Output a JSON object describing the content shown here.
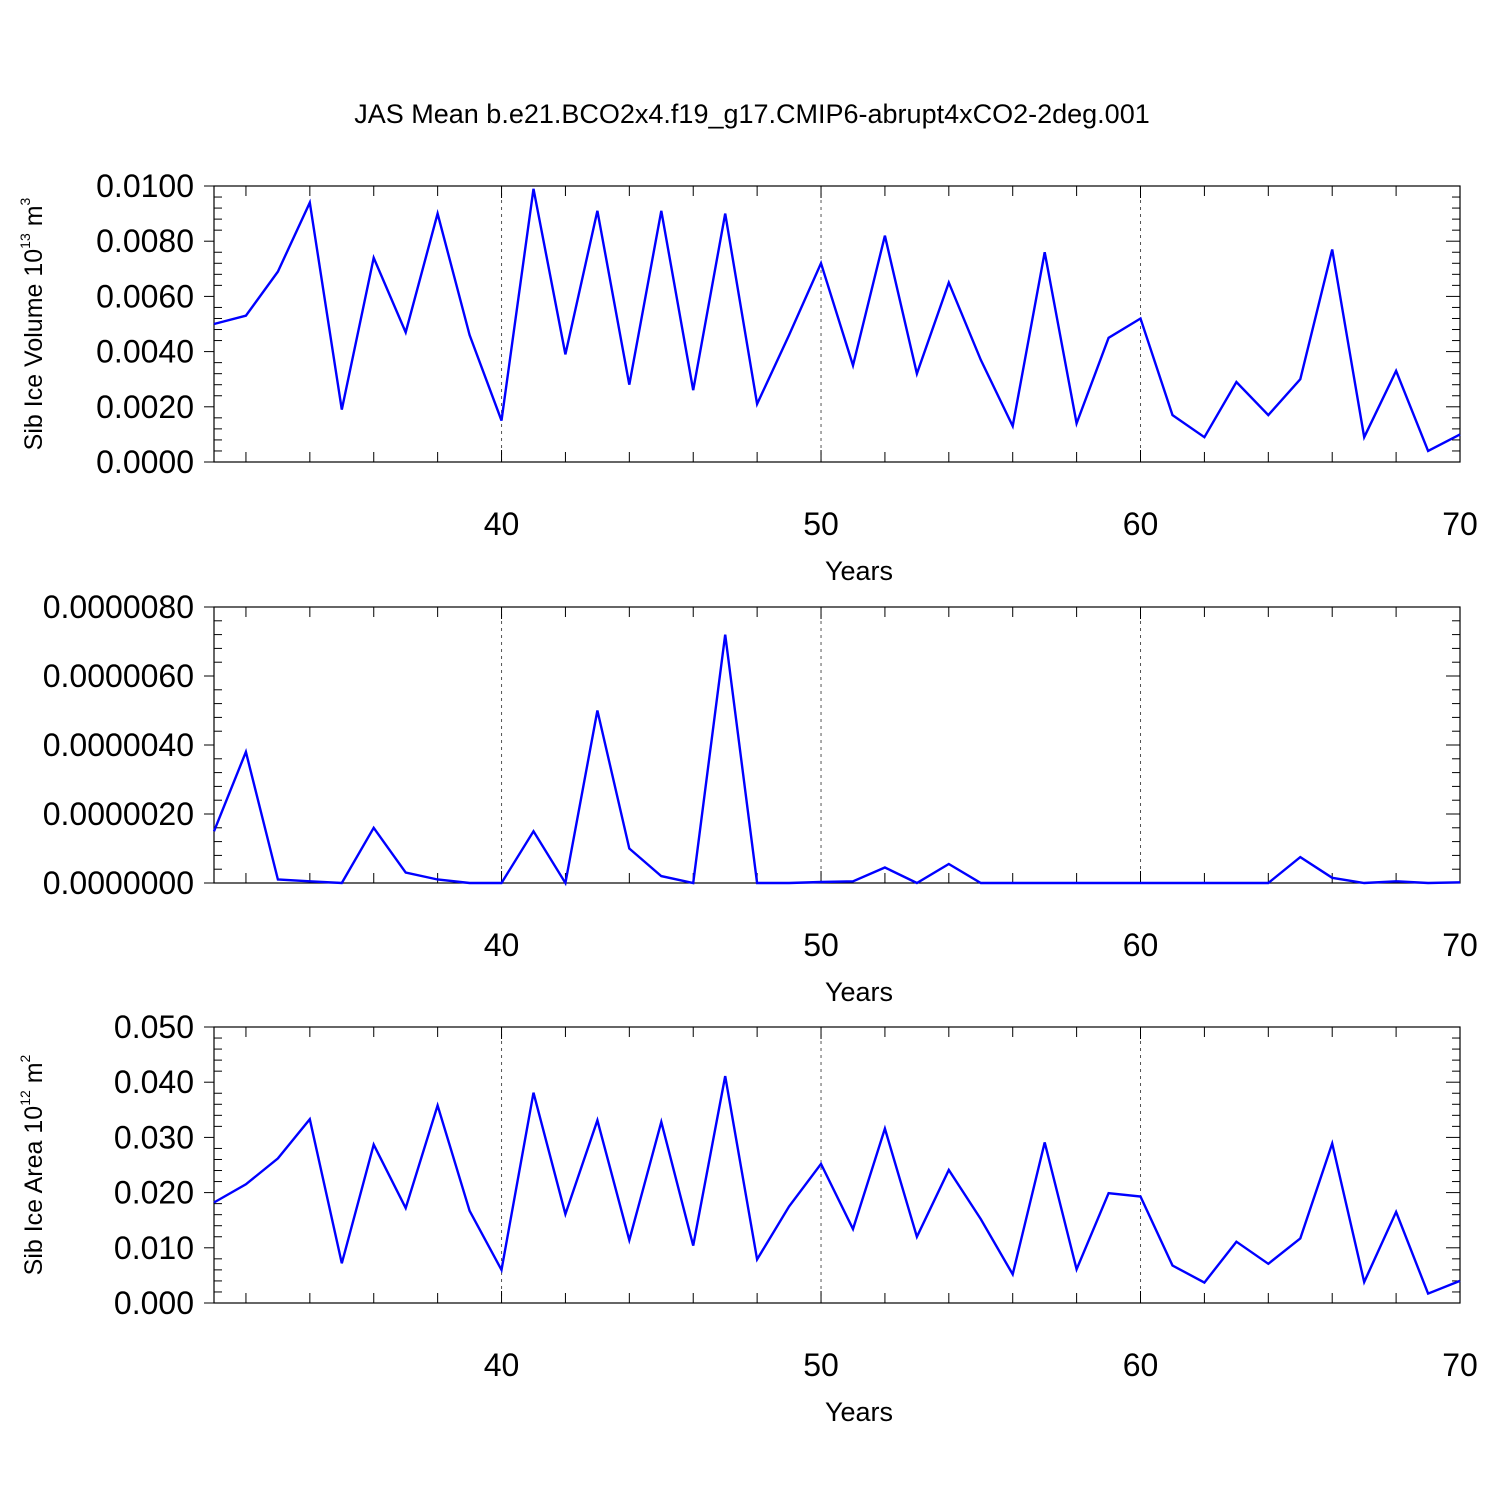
{
  "figure": {
    "title": "JAS Mean b.e21.BCO2x4.f19_g17.CMIP6-abrupt4xCO2-2deg.001"
  },
  "chart_data": [
    {
      "type": "line",
      "xlabel": "Years",
      "ylabel_main": "Sib Ice Volume 10",
      "ylabel_exp": "13",
      "ylabel_unit": " m",
      "ylabel_unit_exp": "3",
      "xlim": [
        31,
        70
      ],
      "ylim": [
        0,
        0.01
      ],
      "y_ticks": [
        0,
        0.002,
        0.004,
        0.006,
        0.008,
        0.01
      ],
      "y_tick_labels": [
        "0.0000",
        "0.0020",
        "0.0040",
        "0.0060",
        "0.0080",
        "0.0100"
      ],
      "x_ticks": [
        40,
        50,
        60,
        70
      ],
      "x_tick_labels": [
        "40",
        "50",
        "60",
        "70"
      ],
      "grid": "vertical dashed at major x ticks",
      "color": "#0000ff",
      "x": [
        31,
        32,
        33,
        34,
        35,
        36,
        37,
        38,
        39,
        40,
        41,
        42,
        43,
        44,
        45,
        46,
        47,
        48,
        49,
        50,
        51,
        52,
        53,
        54,
        55,
        56,
        57,
        58,
        59,
        60,
        61,
        62,
        63,
        64,
        65,
        66,
        67,
        68,
        69,
        70
      ],
      "values": [
        0.005,
        0.0053,
        0.0069,
        0.0094,
        0.0019,
        0.0074,
        0.0047,
        0.009,
        0.0046,
        0.0015,
        0.0099,
        0.0039,
        0.0091,
        0.0028,
        0.0091,
        0.0026,
        0.009,
        0.0021,
        0.0046,
        0.0072,
        0.0035,
        0.0082,
        0.0032,
        0.0065,
        0.0037,
        0.0013,
        0.0076,
        0.0014,
        0.0045,
        0.0052,
        0.0017,
        0.0009,
        0.0029,
        0.0017,
        0.003,
        0.0077,
        0.0009,
        0.0033,
        0.0004,
        0.001
      ]
    },
    {
      "type": "line",
      "xlabel": "Years",
      "xlim": [
        31,
        70
      ],
      "ylim": [
        0,
        8e-06
      ],
      "y_ticks": [
        0,
        2e-06,
        4e-06,
        6e-06,
        8e-06
      ],
      "y_tick_labels": [
        "0.0000000",
        "0.0000020",
        "0.0000040",
        "0.0000060",
        "0.0000080"
      ],
      "x_ticks": [
        40,
        50,
        60,
        70
      ],
      "x_tick_labels": [
        "40",
        "50",
        "60",
        "70"
      ],
      "grid": "vertical dashed at major x ticks",
      "color": "#0000ff",
      "x": [
        31,
        32,
        33,
        34,
        35,
        36,
        37,
        38,
        39,
        40,
        41,
        42,
        43,
        44,
        45,
        46,
        47,
        48,
        49,
        50,
        51,
        52,
        53,
        54,
        55,
        56,
        57,
        58,
        59,
        60,
        61,
        62,
        63,
        64,
        65,
        66,
        67,
        68,
        69,
        70
      ],
      "values": [
        1.5e-06,
        3.8e-06,
        1e-07,
        5e-08,
        0.0,
        1.6e-06,
        3e-07,
        1e-07,
        0.0,
        0.0,
        1.5e-06,
        0.0,
        5e-06,
        1e-06,
        2e-07,
        0.0,
        7.2e-06,
        0.0,
        0.0,
        3e-08,
        5e-08,
        4.5e-07,
        0.0,
        5.5e-07,
        0.0,
        0.0,
        0.0,
        0.0,
        0.0,
        0.0,
        0.0,
        0.0,
        0.0,
        0.0,
        7.5e-07,
        1.5e-07,
        0.0,
        5e-08,
        0.0,
        2e-08
      ]
    },
    {
      "type": "line",
      "xlabel": "Years",
      "ylabel_main": "Sib Ice Area 10",
      "ylabel_exp": "12",
      "ylabel_unit": " m",
      "ylabel_unit_exp": "2",
      "xlim": [
        31,
        70
      ],
      "ylim": [
        0,
        0.05
      ],
      "y_ticks": [
        0,
        0.01,
        0.02,
        0.03,
        0.04,
        0.05
      ],
      "y_tick_labels": [
        "0.000",
        "0.010",
        "0.020",
        "0.030",
        "0.040",
        "0.050"
      ],
      "x_ticks": [
        40,
        50,
        60,
        70
      ],
      "x_tick_labels": [
        "40",
        "50",
        "60",
        "70"
      ],
      "grid": "vertical dashed at major x ticks",
      "color": "#0000ff",
      "x": [
        31,
        32,
        33,
        34,
        35,
        36,
        37,
        38,
        39,
        40,
        41,
        42,
        43,
        44,
        45,
        46,
        47,
        48,
        49,
        50,
        51,
        52,
        53,
        54,
        55,
        56,
        57,
        58,
        59,
        60,
        61,
        62,
        63,
        64,
        65,
        66,
        67,
        68,
        69,
        70
      ],
      "values": [
        0.0182,
        0.0215,
        0.0262,
        0.0333,
        0.0072,
        0.0287,
        0.0172,
        0.0358,
        0.0167,
        0.006,
        0.0381,
        0.0161,
        0.0331,
        0.0114,
        0.0328,
        0.0104,
        0.0411,
        0.0079,
        0.0175,
        0.0252,
        0.0134,
        0.0316,
        0.012,
        0.0241,
        0.0152,
        0.0052,
        0.0291,
        0.0061,
        0.0199,
        0.0193,
        0.0068,
        0.0037,
        0.0111,
        0.0071,
        0.0117,
        0.0289,
        0.0038,
        0.0165,
        0.0017,
        0.004
      ]
    }
  ]
}
